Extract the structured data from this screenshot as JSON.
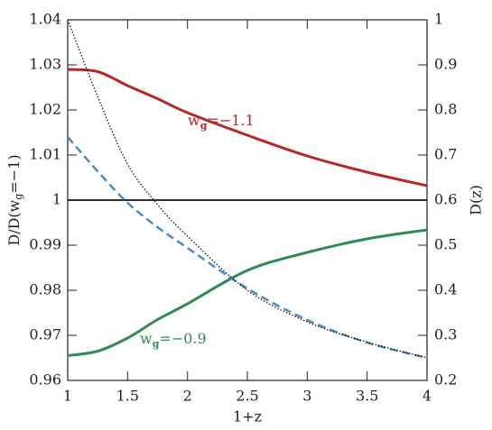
{
  "chart_data": {
    "type": "line",
    "x": [
      1,
      1.25,
      1.5,
      1.75,
      2,
      2.5,
      3,
      3.5,
      4
    ],
    "xlim": [
      1,
      4
    ],
    "xticks": [
      1,
      1.5,
      2,
      2.5,
      3,
      3.5,
      4
    ],
    "ylim": [
      0.96,
      1.04
    ],
    "yticks": [
      0.96,
      0.97,
      0.98,
      0.99,
      1,
      1.01,
      1.02,
      1.03,
      1.04
    ],
    "y2lim": [
      0.2,
      1
    ],
    "y2ticks": [
      0.2,
      0.3,
      0.4,
      0.5,
      0.6,
      0.7,
      0.8,
      0.9,
      1
    ],
    "xlabel": "1+z",
    "ylabel": {
      "text": "D/D(w",
      "sub": "g",
      "rest": "=−1)"
    },
    "y2label": "D(z)",
    "hline": 1,
    "series": [
      {
        "color": "#b5272a",
        "style": "solid",
        "values": [
          1.029,
          1.0285,
          1.0254,
          1.0225,
          1.0194,
          1.0144,
          1.0098,
          1.0062,
          1.0032
        ]
      },
      {
        "color": "#2e8b57",
        "style": "solid",
        "values": [
          0.9655,
          0.9665,
          0.9694,
          0.9735,
          0.977,
          0.9844,
          0.9884,
          0.9914,
          0.9934
        ]
      },
      {
        "color": "#4a8cc4",
        "style": "dashed",
        "axis": "y2",
        "values": [
          0.74,
          0.664,
          0.594,
          0.54,
          0.494,
          0.404,
          0.334,
          0.284,
          0.25
        ]
      },
      {
        "color": "#111111",
        "style": "dotted",
        "axis": "y2",
        "values": [
          1,
          0.83,
          0.68,
          0.59,
          0.52,
          0.4,
          0.33,
          0.285,
          0.25
        ]
      }
    ],
    "annotations": [
      {
        "text": "w",
        "sub": "g",
        "rest": "=−1.1",
        "color": "#b5272a"
      },
      {
        "text": "w",
        "sub": "g",
        "rest": "=−0.9",
        "color": "#2e8b57"
      }
    ]
  }
}
